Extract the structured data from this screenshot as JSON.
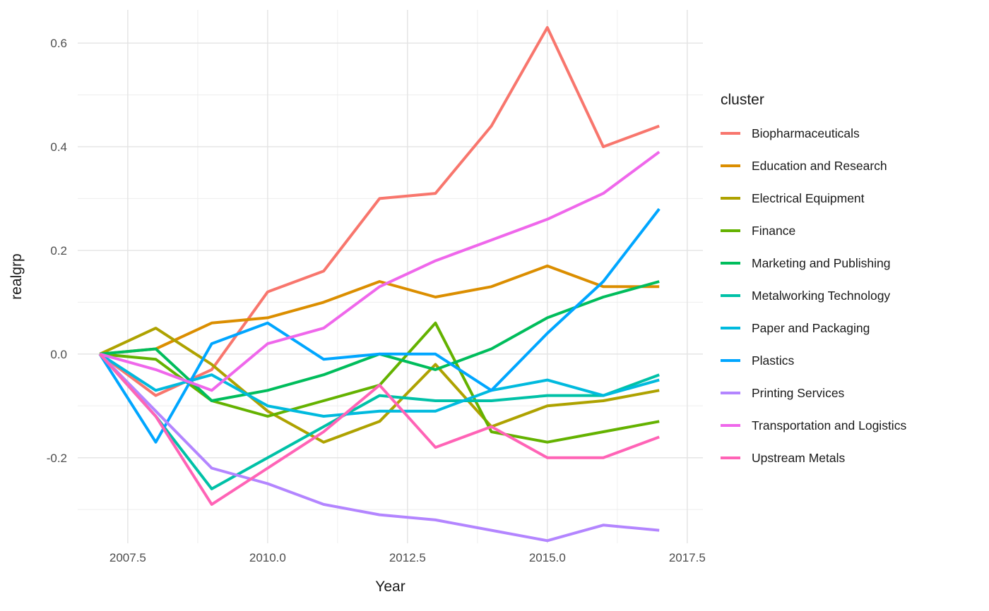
{
  "chart_data": {
    "type": "line",
    "title": "",
    "xlabel": "Year",
    "ylabel": "realgrp",
    "legend_title": "cluster",
    "legend_position": "right",
    "grid": true,
    "background": "#ffffff",
    "grid_major_color": "#e3e3e3",
    "grid_minor_color": "#eeeeee",
    "tick_label_color": "#4d4d4d",
    "axis_title_color": "#1a1a1a",
    "legend_text_color": "#1a1a1a",
    "xlim": [
      2006.605,
      2017.78
    ],
    "ylim": [
      -0.365,
      0.664
    ],
    "x": [
      2007,
      2008,
      2009,
      2010,
      2011,
      2012,
      2013,
      2014,
      2015,
      2016,
      2017
    ],
    "x_ticks": {
      "values": [
        2007.5,
        2010.0,
        2012.5,
        2015.0,
        2017.5
      ],
      "labels": [
        "2007.5",
        "2010.0",
        "2012.5",
        "2015.0",
        "2017.5"
      ]
    },
    "x_minor": [
      2008.75,
      2011.25,
      2013.75,
      2016.25
    ],
    "y_ticks": {
      "values": [
        0.6,
        0.4,
        0.2,
        0.0,
        -0.2
      ],
      "labels": [
        "0.6",
        "0.4",
        "0.2",
        "0.0",
        "-0.2"
      ]
    },
    "y_minor": [
      0.5,
      0.3,
      0.1,
      -0.1,
      -0.3
    ],
    "series": [
      {
        "name": "Biopharmaceuticals",
        "color": "#F8766D",
        "values": [
          0,
          -0.08,
          -0.03,
          0.12,
          0.16,
          0.3,
          0.31,
          0.44,
          0.63,
          0.4,
          0.44
        ]
      },
      {
        "name": "Education and Research",
        "color": "#DB8E00",
        "values": [
          0,
          0.01,
          0.06,
          0.07,
          0.1,
          0.14,
          0.11,
          0.13,
          0.17,
          0.13,
          0.13
        ]
      },
      {
        "name": "Electrical Equipment",
        "color": "#AEA200",
        "values": [
          0,
          0.05,
          -0.02,
          -0.11,
          -0.17,
          -0.13,
          -0.02,
          -0.14,
          -0.1,
          -0.09,
          -0.07
        ]
      },
      {
        "name": "Finance",
        "color": "#64B200",
        "values": [
          0,
          -0.01,
          -0.09,
          -0.12,
          -0.09,
          -0.06,
          0.06,
          -0.15,
          -0.17,
          -0.15,
          -0.13
        ]
      },
      {
        "name": "Marketing and Publishing",
        "color": "#00BD5C",
        "values": [
          0,
          0.01,
          -0.09,
          -0.07,
          -0.04,
          0.0,
          -0.03,
          0.01,
          0.07,
          0.11,
          0.14
        ]
      },
      {
        "name": "Metalworking Technology",
        "color": "#00C1A7",
        "values": [
          0,
          -0.12,
          -0.26,
          -0.2,
          -0.14,
          -0.08,
          -0.09,
          -0.09,
          -0.08,
          -0.08,
          -0.04
        ]
      },
      {
        "name": "Paper and Packaging",
        "color": "#00BADE",
        "values": [
          0,
          -0.07,
          -0.04,
          -0.1,
          -0.12,
          -0.11,
          -0.11,
          -0.07,
          -0.05,
          -0.08,
          -0.05
        ]
      },
      {
        "name": "Plastics",
        "color": "#00A6FF",
        "values": [
          0,
          -0.17,
          0.02,
          0.06,
          -0.01,
          0.0,
          0.0,
          -0.07,
          0.04,
          0.14,
          0.28
        ]
      },
      {
        "name": "Printing Services",
        "color": "#B385FF",
        "values": [
          0,
          -0.11,
          -0.22,
          -0.25,
          -0.29,
          -0.31,
          -0.32,
          -0.34,
          -0.36,
          -0.33,
          -0.34
        ]
      },
      {
        "name": "Transportation and Logistics",
        "color": "#EF67EB",
        "values": [
          0,
          -0.03,
          -0.07,
          0.02,
          0.05,
          0.13,
          0.18,
          0.22,
          0.26,
          0.31,
          0.39
        ]
      },
      {
        "name": "Upstream Metals",
        "color": "#FF63B6",
        "values": [
          0,
          -0.12,
          -0.29,
          -0.22,
          -0.15,
          -0.06,
          -0.18,
          -0.14,
          -0.2,
          -0.2,
          -0.16
        ]
      }
    ]
  }
}
